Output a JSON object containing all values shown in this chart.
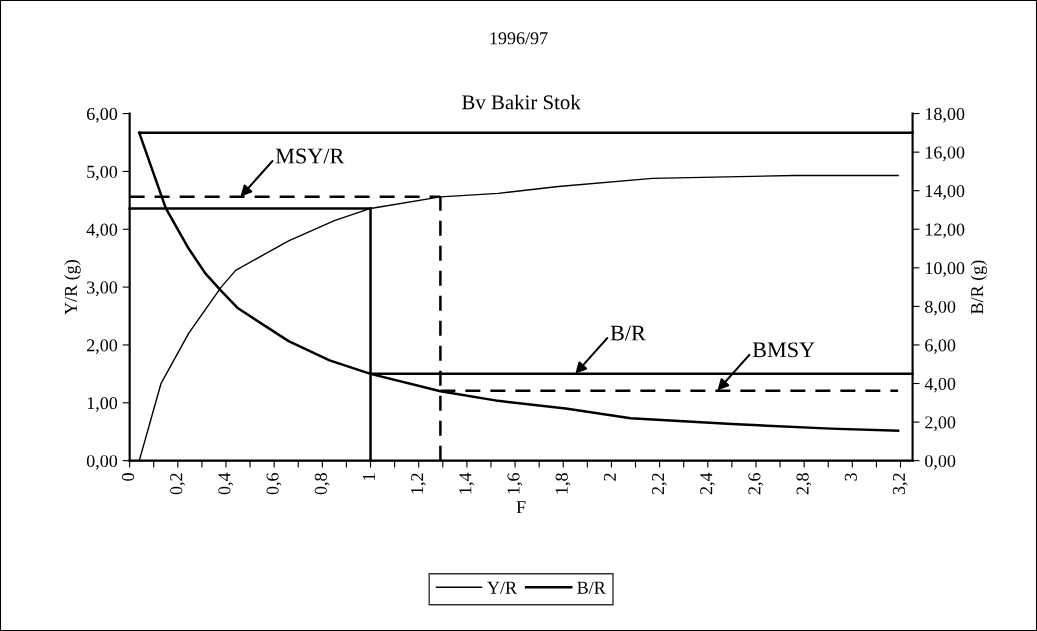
{
  "chart_data": {
    "type": "line",
    "title": "1996/97",
    "subtitle": "Bv Bakir Stok",
    "xlabel": "F",
    "ylabel": "Y/R (g)",
    "y2label": "B/R (g)",
    "xlim": [
      0,
      3.25
    ],
    "xticks": [
      {
        "value": 0,
        "label": "0"
      },
      {
        "value": 0.1,
        "label": null
      },
      {
        "value": 0.2,
        "label": "0,2"
      },
      {
        "value": 0.3,
        "label": null
      },
      {
        "value": 0.4,
        "label": "0,4"
      },
      {
        "value": 0.5,
        "label": null
      },
      {
        "value": 0.6,
        "label": "0,6"
      },
      {
        "value": 0.7,
        "label": null
      },
      {
        "value": 0.8,
        "label": "0,8"
      },
      {
        "value": 0.9,
        "label": null
      },
      {
        "value": 1,
        "label": "1"
      },
      {
        "value": 1.1,
        "label": null
      },
      {
        "value": 1.2,
        "label": "1,2"
      },
      {
        "value": 1.3,
        "label": null
      },
      {
        "value": 1.4,
        "label": "1,4"
      },
      {
        "value": 1.5,
        "label": null
      },
      {
        "value": 1.6,
        "label": "1,6"
      },
      {
        "value": 1.7,
        "label": null
      },
      {
        "value": 1.8,
        "label": "1,8"
      },
      {
        "value": 1.9,
        "label": null
      },
      {
        "value": 2,
        "label": "2"
      },
      {
        "value": 2.1,
        "label": null
      },
      {
        "value": 2.2,
        "label": "2,2"
      },
      {
        "value": 2.3,
        "label": null
      },
      {
        "value": 2.4,
        "label": "2,4"
      },
      {
        "value": 2.5,
        "label": null
      },
      {
        "value": 2.6,
        "label": "2,6"
      },
      {
        "value": 2.7,
        "label": null
      },
      {
        "value": 2.8,
        "label": "2,8"
      },
      {
        "value": 2.9,
        "label": null
      },
      {
        "value": 3,
        "label": "3"
      },
      {
        "value": 3.1,
        "label": null
      },
      {
        "value": 3.2,
        "label": "3,2"
      }
    ],
    "ylim": [
      0,
      6
    ],
    "yticks": [
      {
        "value": 0,
        "label": "0,00"
      },
      {
        "value": 1,
        "label": "1,00"
      },
      {
        "value": 2,
        "label": "2,00"
      },
      {
        "value": 3,
        "label": "3,00"
      },
      {
        "value": 4,
        "label": "4,00"
      },
      {
        "value": 5,
        "label": "5,00"
      },
      {
        "value": 6,
        "label": "6,00"
      }
    ],
    "y2lim": [
      0,
      18
    ],
    "y2ticks": [
      {
        "value": 0,
        "label": "0,00"
      },
      {
        "value": 2,
        "label": "2,00"
      },
      {
        "value": 4,
        "label": "4,00"
      },
      {
        "value": 6,
        "label": "6,00"
      },
      {
        "value": 8,
        "label": "8,00"
      },
      {
        "value": 10,
        "label": "10,00"
      },
      {
        "value": 12,
        "label": "12,00"
      },
      {
        "value": 14,
        "label": "14,00"
      },
      {
        "value": 16,
        "label": "16,00"
      },
      {
        "value": 18,
        "label": "18,00"
      }
    ],
    "grid": false,
    "legend": "bottom",
    "marker": "none",
    "series": [
      {
        "name": "Y/R",
        "color": "#000000",
        "line_style": "solid",
        "x": [
          0.04,
          0.13,
          0.245,
          0.38,
          0.44,
          0.66,
          0.85,
          1.0,
          1.29,
          1.53,
          1.78,
          2.17,
          2.76,
          3.19
        ],
        "values": [
          0,
          1.33,
          2.2,
          3.0,
          3.29,
          3.8,
          4.15,
          4.36,
          4.56,
          4.62,
          4.74,
          4.88,
          4.93,
          4.93
        ]
      },
      {
        "name": "B/R",
        "color": "#000000",
        "line_style": "solid",
        "axis": "y2",
        "x": [
          0.04,
          0.15,
          0.245,
          0.315,
          0.38,
          0.45,
          0.66,
          0.83,
          1.0,
          1.29,
          1.53,
          1.81,
          2.08,
          2.5,
          2.91,
          3.19
        ],
        "values": [
          17.0,
          13.1,
          11.0,
          9.7,
          8.8,
          7.9,
          6.2,
          5.2,
          4.5,
          3.6,
          3.1,
          2.7,
          2.2,
          1.9,
          1.66,
          1.55
        ]
      },
      {
        "color": "#000000",
        "line_style": "solid",
        "axis": "y2",
        "x": [
          0.04,
          3.25
        ],
        "values": [
          17.0,
          17.0
        ]
      },
      {
        "color": "#000000",
        "line_style": "solid",
        "x": [
          0,
          1.0
        ],
        "values": [
          4.36,
          4.36
        ]
      },
      {
        "color": "#000000",
        "line_style": "solid",
        "x": [
          1.0,
          1.0
        ],
        "values": [
          0,
          4.36
        ]
      },
      {
        "color": "#000000",
        "line_style": "dashed",
        "x": [
          0,
          1.29
        ],
        "values": [
          4.56,
          4.56
        ]
      },
      {
        "color": "#000000",
        "line_style": "dashed",
        "x": [
          1.29,
          1.29
        ],
        "values": [
          0,
          4.56
        ]
      },
      {
        "color": "#000000",
        "line_style": "solid",
        "axis": "y2",
        "x": [
          1.0,
          3.25
        ],
        "values": [
          4.5,
          4.5
        ]
      },
      {
        "color": "#000000",
        "line_style": "dashed",
        "axis": "y2",
        "x": [
          1.29,
          3.19
        ],
        "values": [
          3.63,
          3.63
        ]
      }
    ],
    "annotations": [
      {
        "text": "MSY/R",
        "x": 0.46,
        "y": 4.56
      },
      {
        "text": "B/R",
        "x": 1.85,
        "y": 1.5
      },
      {
        "text": "BMSY",
        "x": 2.44,
        "y": 1.21
      }
    ]
  }
}
